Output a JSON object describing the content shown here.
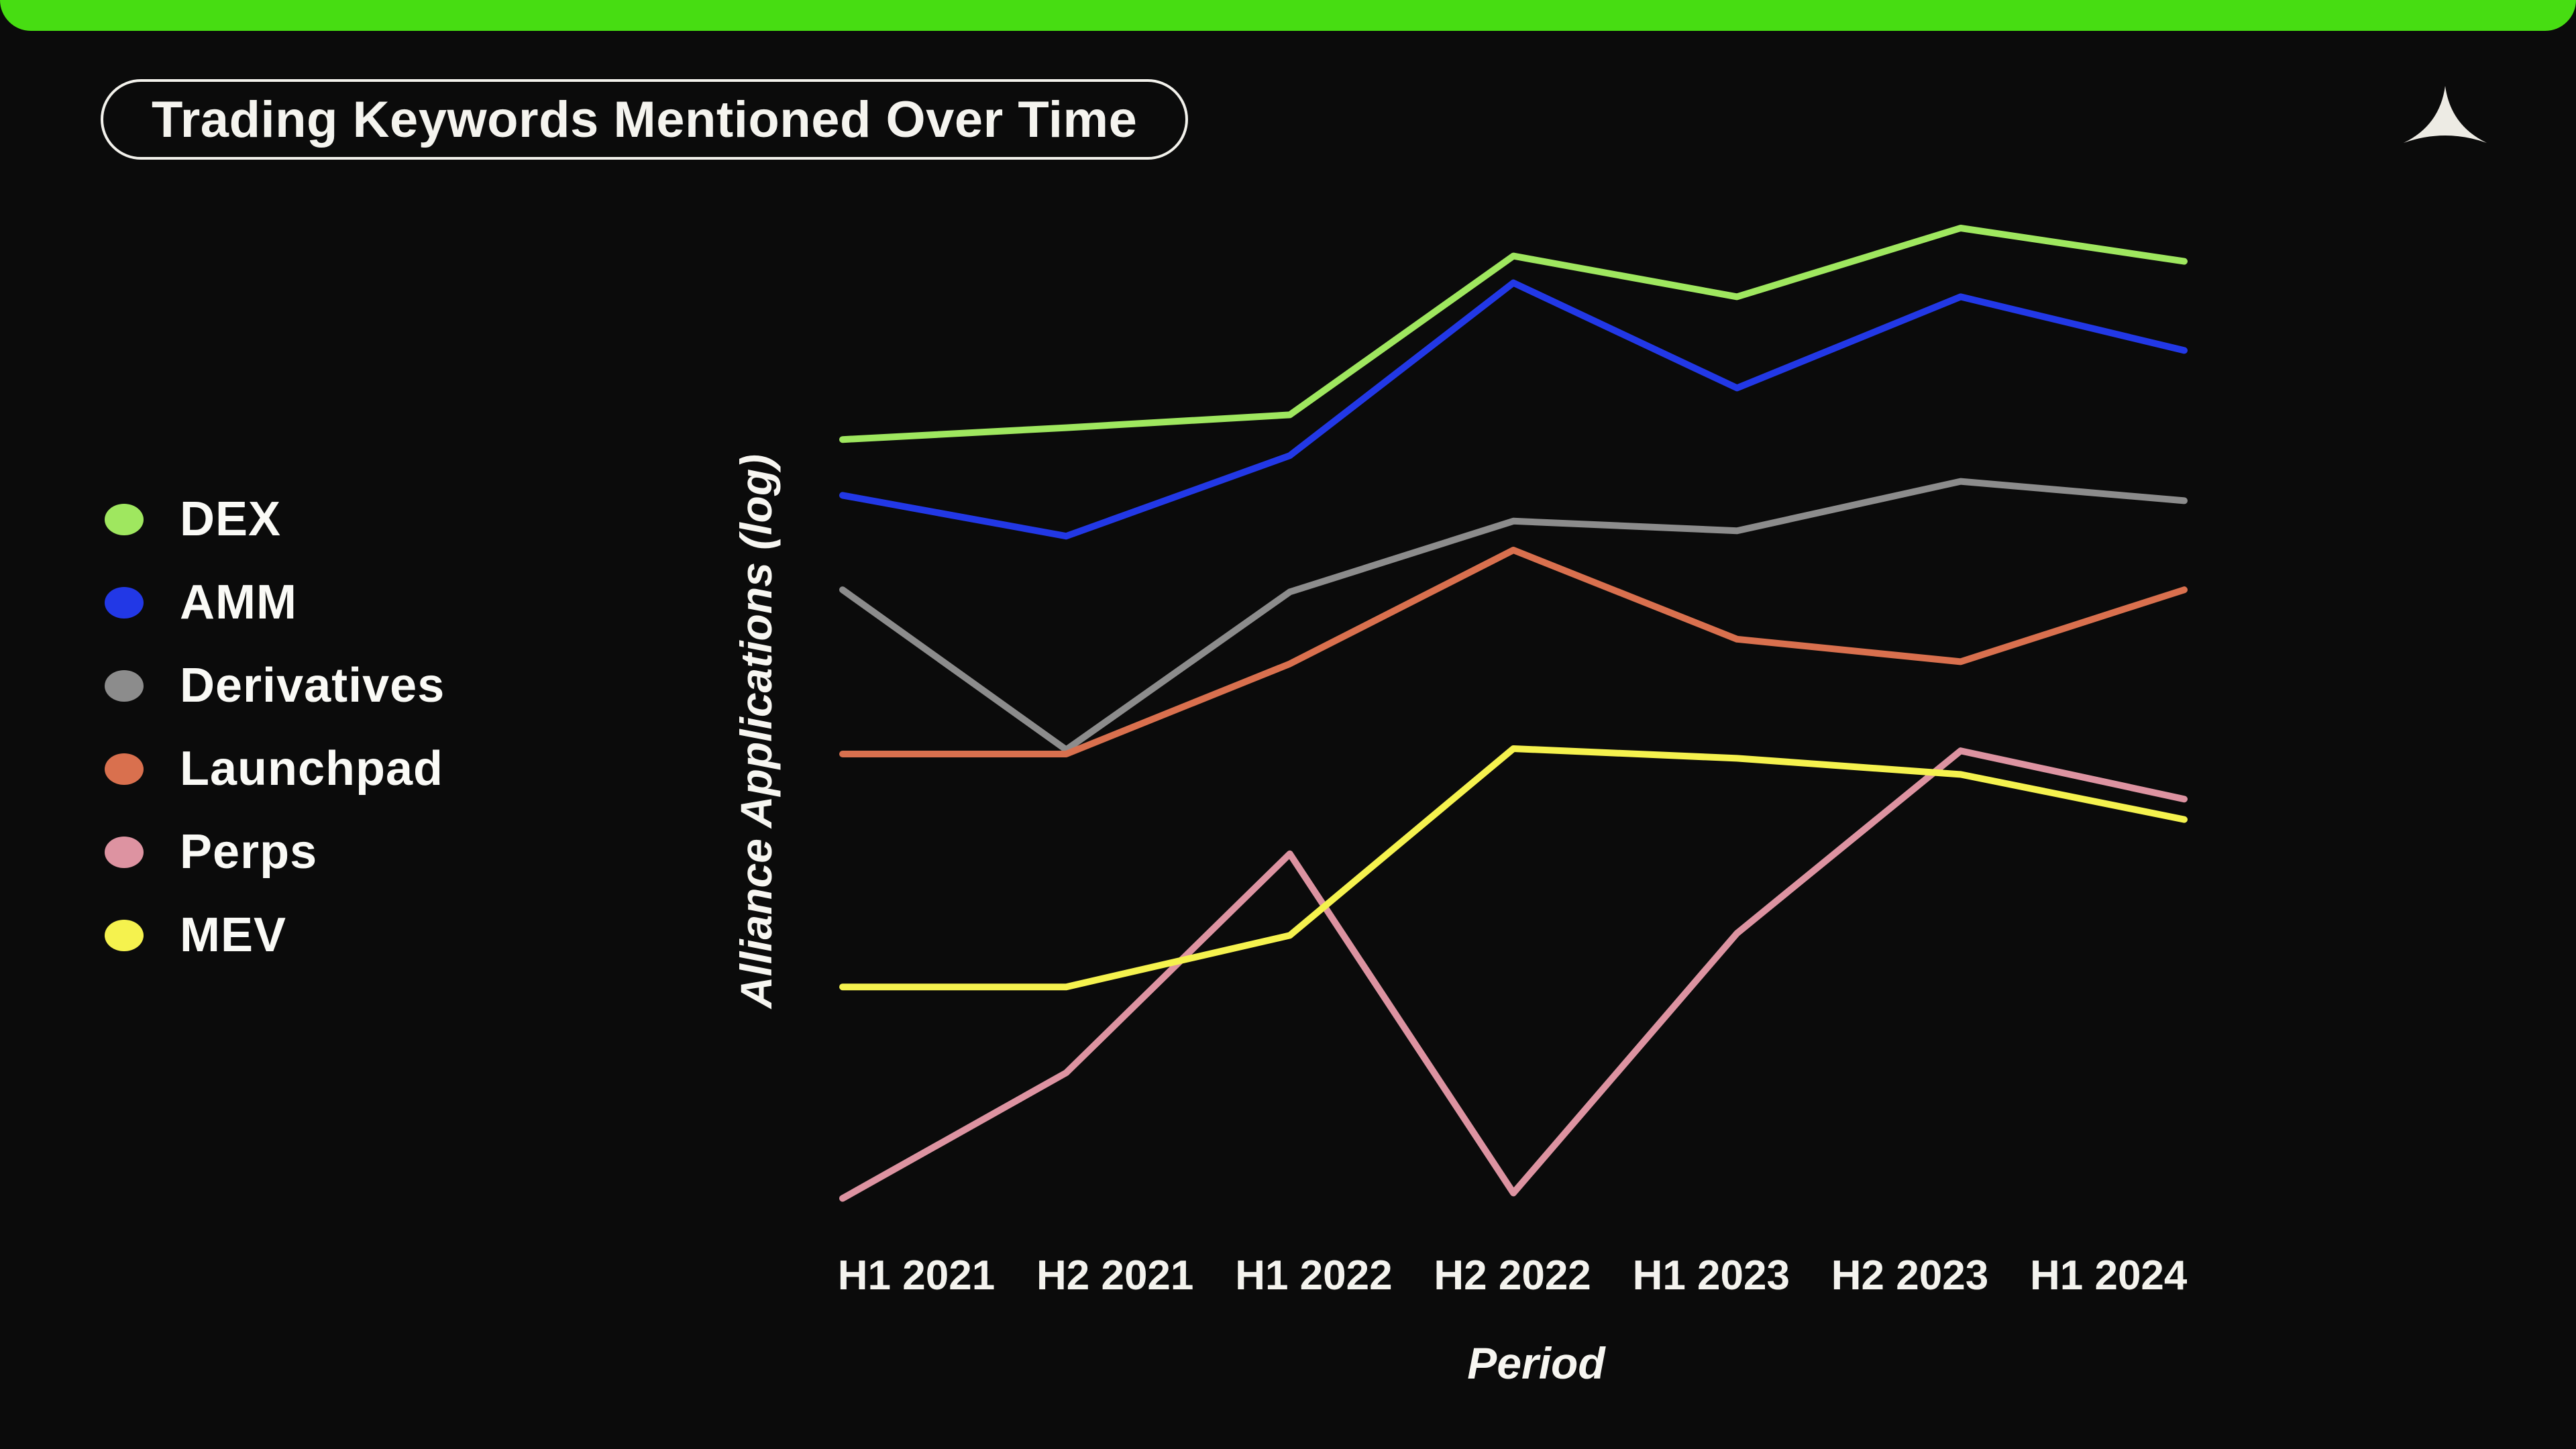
{
  "page": {
    "background_color": "#0b0b0b",
    "top_accent_bar_color": "#47dd12",
    "text_color": "#f5f4ef",
    "logo_color": "#edebe4"
  },
  "header": {
    "title": "Trading Keywords Mentioned Over Time",
    "logo_icon": "alliance-triangle-logo"
  },
  "chart_data": {
    "type": "line",
    "title": "Trading Keywords Mentioned Over Time",
    "xlabel": "Period",
    "ylabel": "Alliance Applications (log)",
    "y_scale": "log",
    "y_tick_labels_visible": false,
    "grid": false,
    "legend_position": "left",
    "values_note": "y-axis shows no numeric ticks; values are relative vertical positions (0-100) read from the plot on the log axis",
    "ylim": [
      0,
      100
    ],
    "categories": [
      "H1 2021",
      "H2 2021",
      "H1 2022",
      "H2 2022",
      "H1 2023",
      "H2 2023",
      "H1 2024"
    ],
    "series": [
      {
        "name": "DEX",
        "color": "#9fe75f",
        "values": [
          77.8,
          78.9,
          80.1,
          94.9,
          91.1,
          97.5,
          94.4
        ]
      },
      {
        "name": "AMM",
        "color": "#2238e6",
        "values": [
          72.6,
          68.8,
          76.3,
          92.4,
          82.6,
          91.1,
          86.1
        ]
      },
      {
        "name": "Derivatives",
        "color": "#8c8c8c",
        "values": [
          63.8,
          48.9,
          63.6,
          70.2,
          69.3,
          73.9,
          72.1
        ]
      },
      {
        "name": "Launchpad",
        "color": "#d9704e",
        "values": [
          48.5,
          48.5,
          56.9,
          67.5,
          59.2,
          57.1,
          63.8
        ]
      },
      {
        "name": "Perps",
        "color": "#dd93a1",
        "values": [
          7.1,
          18.8,
          39.2,
          7.6,
          31.8,
          48.8,
          44.3
        ]
      },
      {
        "name": "MEV",
        "color": "#f5f24e",
        "values": [
          26.8,
          26.8,
          31.6,
          49.0,
          48.1,
          46.6,
          42.4
        ]
      }
    ]
  }
}
